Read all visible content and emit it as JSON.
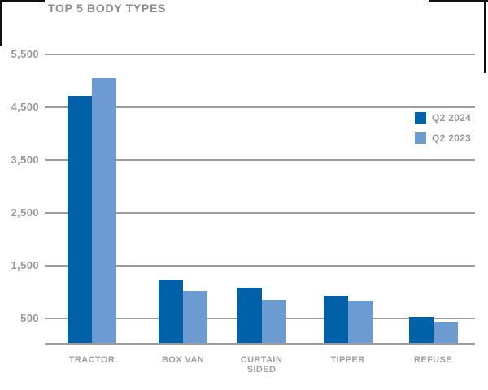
{
  "title": "TOP 5 BODY TYPES",
  "chart_data": {
    "type": "bar",
    "title": "TOP 5 BODY TYPES",
    "categories": [
      "TRACTOR",
      "BOX VAN",
      "CURTAIN SIDED",
      "TIPPER",
      "REFUSE"
    ],
    "series": [
      {
        "name": "Q2 2024",
        "color": "#0061A9",
        "values": [
          4710,
          1230,
          1080,
          925,
          530
        ]
      },
      {
        "name": "Q2 2023",
        "color": "#6B9BD0",
        "values": [
          5040,
          1010,
          850,
          835,
          430
        ]
      }
    ],
    "yticks": [
      500,
      1500,
      2500,
      3500,
      4500,
      5500
    ],
    "ytick_labels": [
      "500",
      "1,500",
      "2,500",
      "3,500",
      "4,500",
      "5,500"
    ],
    "ylim": [
      0,
      5600
    ],
    "grid": true,
    "legend_position": "right",
    "xlabel": "",
    "ylabel": ""
  },
  "colors": {
    "q2_2024": "#0061A9",
    "q2_2023": "#6B9BD0",
    "gridline": "#9C9C9E",
    "text_gray": "#97999C",
    "title_gray": "#8A8C8F",
    "edge_mark": "#111111"
  }
}
